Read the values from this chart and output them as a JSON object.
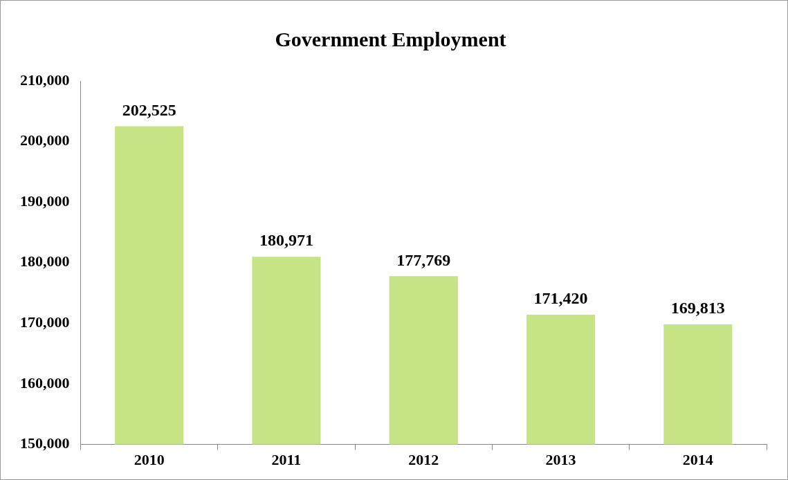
{
  "chart_data": {
    "type": "bar",
    "title": "Government Employment",
    "categories": [
      "2010",
      "2011",
      "2012",
      "2013",
      "2014"
    ],
    "values": [
      202525,
      180971,
      177769,
      171420,
      169813
    ],
    "value_labels": [
      "202,525",
      "180,971",
      "177,769",
      "171,420",
      "169,813"
    ],
    "color": "#c6e486",
    "ylim": [
      150000,
      210000
    ],
    "yticks": [
      {
        "value": 150000,
        "label": "150,000"
      },
      {
        "value": 160000,
        "label": "160,000"
      },
      {
        "value": 170000,
        "label": "170,000"
      },
      {
        "value": 180000,
        "label": "180,000"
      },
      {
        "value": 190000,
        "label": "190,000"
      },
      {
        "value": 200000,
        "label": "200,000"
      },
      {
        "value": 210000,
        "label": "210,000"
      }
    ],
    "grid": false,
    "legend": false
  }
}
